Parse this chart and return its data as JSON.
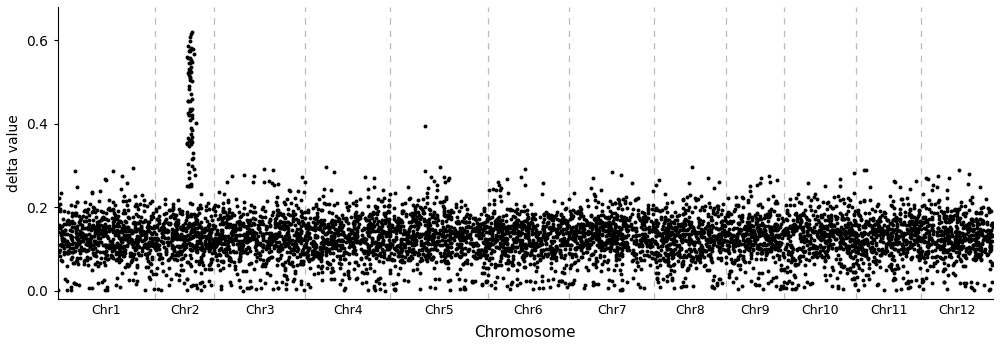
{
  "chromosomes": [
    "Chr1",
    "Chr2",
    "Chr3",
    "Chr4",
    "Chr5",
    "Chr6",
    "Chr7",
    "Chr8",
    "Chr9",
    "Chr10",
    "Chr11",
    "Chr12"
  ],
  "n_chrs": 12,
  "chr_sizes": [
    300,
    180,
    280,
    260,
    300,
    250,
    260,
    220,
    180,
    220,
    200,
    220
  ],
  "background_color": "#ffffff",
  "dot_color": "#000000",
  "dot_size": 8,
  "dashed_line_color": "#bbbbbb",
  "ylabel": "delta value",
  "xlabel": "Chromosome",
  "ylim": [
    -0.02,
    0.68
  ],
  "yticks": [
    0.0,
    0.2,
    0.4,
    0.6
  ],
  "seed": 12345,
  "base_mean": 0.13,
  "base_std": 0.04,
  "figsize": [
    10.0,
    3.47
  ]
}
